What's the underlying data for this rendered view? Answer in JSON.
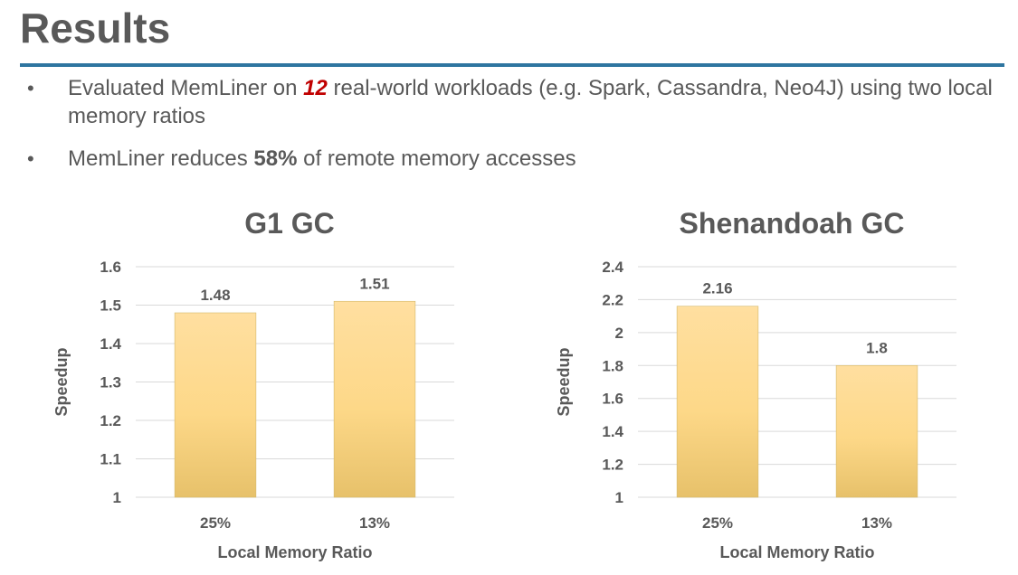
{
  "slide": {
    "title": "Results",
    "bullets": [
      {
        "pre": "Evaluated MemLiner on ",
        "highlight": "12",
        "post": " real-world workloads (e.g. Spark, Cassandra, Neo4J) using two local memory ratios"
      },
      {
        "pre": "MemLiner reduces ",
        "highlight": "58%",
        "post": " of remote memory accesses"
      }
    ]
  },
  "colors": {
    "title_rule": "#2e75a0",
    "highlight_red": "#c00000",
    "bar_top": "#ffdfa0",
    "bar_bottom": "#e7c16a",
    "bar_edge": "#d4b86a"
  },
  "chart_data": [
    {
      "type": "bar",
      "title": "G1 GC",
      "xlabel": "Local Memory Ratio",
      "ylabel": "Speedup",
      "categories": [
        "25%",
        "13%"
      ],
      "values": [
        1.48,
        1.51
      ],
      "data_labels": [
        "1.48",
        "1.51"
      ],
      "ylim": [
        1,
        1.6
      ],
      "yticks": [
        1,
        1.1,
        1.2,
        1.3,
        1.4,
        1.5,
        1.6
      ],
      "ytick_labels": [
        "1",
        "1.1",
        "1.2",
        "1.3",
        "1.4",
        "1.5",
        "1.6"
      ],
      "grid": true,
      "legend": "none"
    },
    {
      "type": "bar",
      "title": "Shenandoah GC",
      "xlabel": "Local Memory Ratio",
      "ylabel": "Speedup",
      "categories": [
        "25%",
        "13%"
      ],
      "values": [
        2.16,
        1.8
      ],
      "data_labels": [
        "2.16",
        "1.8"
      ],
      "ylim": [
        1,
        2.4
      ],
      "yticks": [
        1,
        1.2,
        1.4,
        1.6,
        1.8,
        2,
        2.2,
        2.4
      ],
      "ytick_labels": [
        "1",
        "1.2",
        "1.4",
        "1.6",
        "1.8",
        "2",
        "2.2",
        "2.4"
      ],
      "grid": true,
      "legend": "none"
    }
  ]
}
